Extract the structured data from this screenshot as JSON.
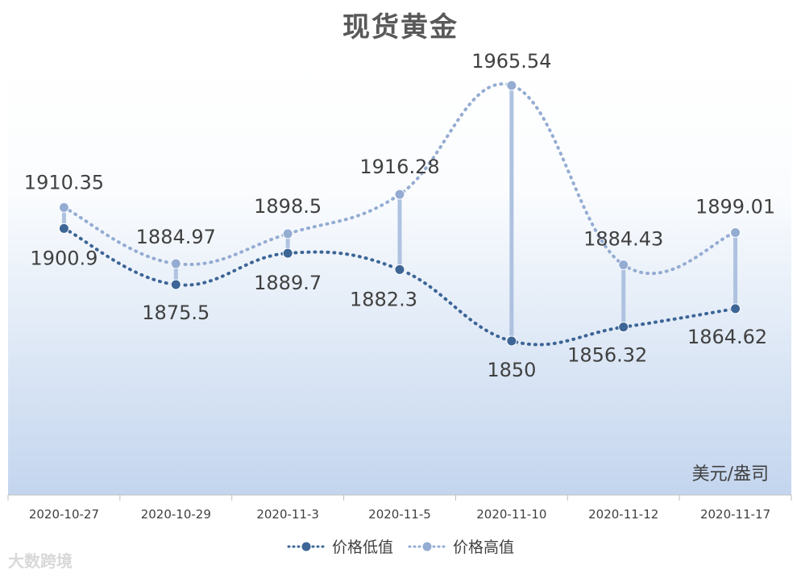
{
  "chart_data": {
    "type": "line",
    "title": "现货黄金",
    "unit_label": "美元/盎司",
    "categories": [
      "2020-10-27",
      "2020-10-29",
      "2020-11-3",
      "2020-11-5",
      "2020-11-10",
      "2020-11-12",
      "2020-11-17"
    ],
    "series": [
      {
        "name": "价格低值",
        "values": [
          1900.9,
          1875.5,
          1889.7,
          1882.3,
          1850,
          1856.32,
          1864.62
        ],
        "labels": [
          "1900.9",
          "1875.5",
          "1889.7",
          "1882.3",
          "1850",
          "1856.32",
          "1864.62"
        ],
        "color": "#3d6596",
        "style": "dotted smooth line with circular markers"
      },
      {
        "name": "价格高值",
        "values": [
          1910.35,
          1884.97,
          1898.5,
          1916.28,
          1965.54,
          1884.43,
          1899.01
        ],
        "labels": [
          "1910.35",
          "1884.97",
          "1898.5",
          "1916.28",
          "1965.54",
          "1884.43",
          "1899.01"
        ],
        "color": "#94acd2",
        "style": "dotted smooth line with circular markers"
      }
    ],
    "drop_lines": true,
    "background": "vertical gradient white to light blue",
    "grid": false,
    "legend_position": "bottom"
  },
  "watermark": "大数跨境",
  "colors": {
    "low": "#3d6596",
    "high": "#94acd2",
    "axis": "#bfbfbf",
    "text": "#404040"
  }
}
